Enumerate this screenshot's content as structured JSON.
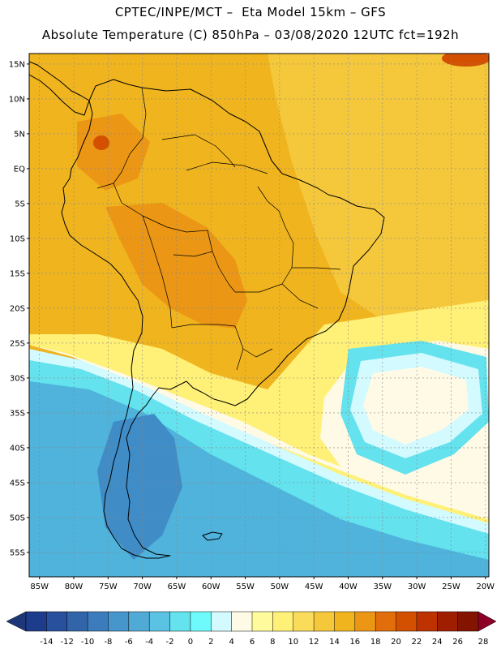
{
  "title_line1": "CPTEC/INPE/MCT –  Eta Model 15km – GFS",
  "title_line2": "Absolute Temperature (C) 850hPa – 03/08/2020 12UTC fct=192h",
  "lat_labels": [
    "15N",
    "10N",
    "5N",
    "EQ",
    "5S",
    "10S",
    "15S",
    "20S",
    "25S",
    "30S",
    "35S",
    "40S",
    "45S",
    "50S",
    "55S"
  ],
  "lon_labels": [
    "85W",
    "80W",
    "75W",
    "70W",
    "65W",
    "60W",
    "55W",
    "50W",
    "45W",
    "40W",
    "35W",
    "30W",
    "25W",
    "20W"
  ],
  "colorbar": {
    "labels": [
      "-14",
      "-12",
      "-10",
      "-8",
      "-6",
      "-4",
      "-2",
      "0",
      "2",
      "4",
      "6",
      "8",
      "10",
      "12",
      "14",
      "16",
      "18",
      "20",
      "22",
      "24",
      "26",
      "28"
    ],
    "colors": [
      "#1e3c8c",
      "#28509c",
      "#3264aa",
      "#3c7cbc",
      "#4696cc",
      "#50aad6",
      "#5ac2e2",
      "#64e2ee",
      "#6efafa",
      "#d2faff",
      "#fffae6",
      "#fffa9b",
      "#fff078",
      "#fadc5a",
      "#f5c83c",
      "#f0b41e",
      "#eb9614",
      "#e16e0a",
      "#d25000",
      "#be3200",
      "#a01e00",
      "#821400"
    ],
    "low_color": "#1e3778",
    "high_color": "#8c0028"
  },
  "field_colors": {
    "ocean_cold": "#4fb3dc",
    "cold_patagonia": "#3f8cc7",
    "cyan_band": "#64e2ee",
    "pale_front": "#d2faff",
    "cream_front": "#fffae6",
    "yellow_front": "#fff078",
    "warm_main": "#f0b41e",
    "warm_atlantic": "#f5c83c",
    "hot_interior": "#eb9614",
    "hot_spot": "#d25000"
  },
  "coastline_color": "#000000",
  "grid_color": "#888888"
}
